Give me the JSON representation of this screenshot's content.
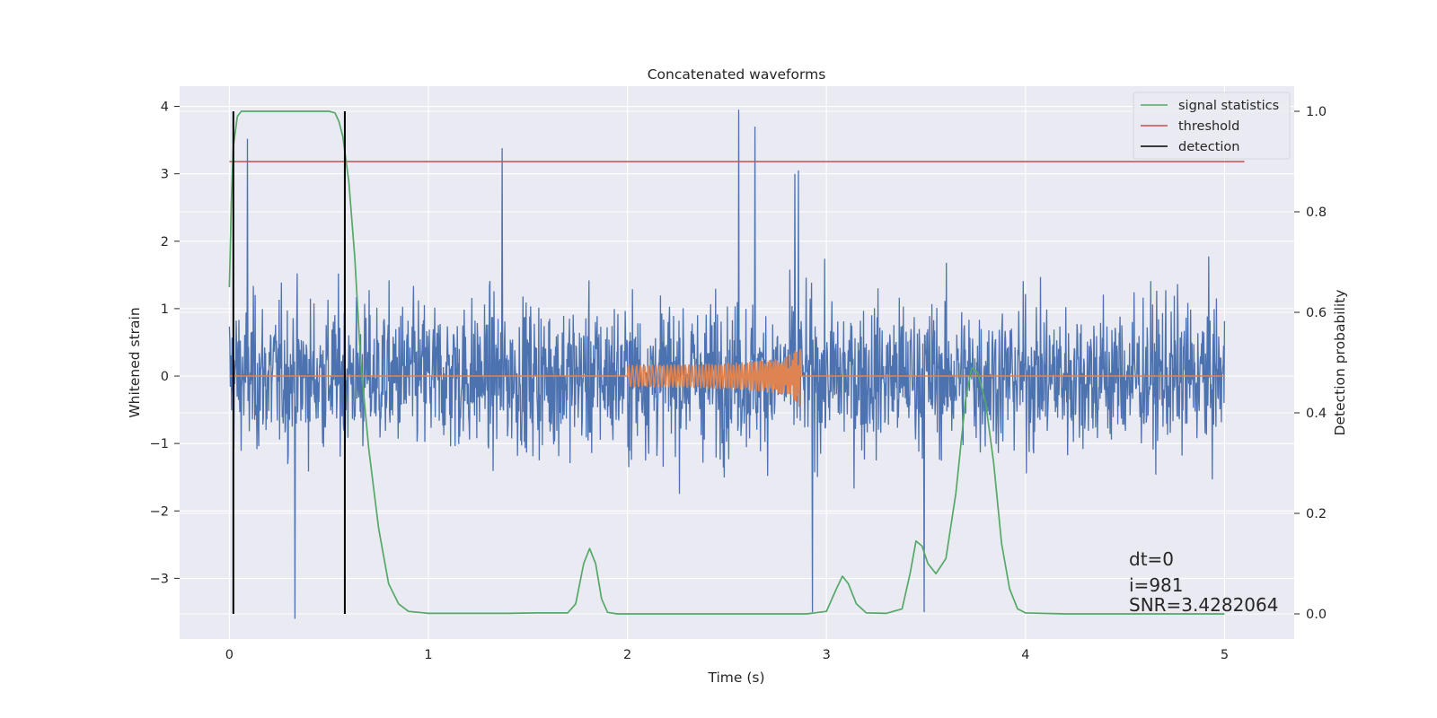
{
  "chart_data": {
    "type": "line",
    "title": "Concatenated waveforms",
    "xlabel": "Time (s)",
    "ylabel": "Whitened strain",
    "y2label": "Detection probability",
    "xlim": [
      -0.25,
      5.35
    ],
    "ylim": [
      -3.9,
      4.3
    ],
    "y2lim": [
      -0.05,
      1.05
    ],
    "xticks": [
      0,
      1,
      2,
      3,
      4,
      5
    ],
    "xtick_labels": [
      "0",
      "1",
      "2",
      "3",
      "4",
      "5"
    ],
    "yticks": [
      -3,
      -2,
      -1,
      0,
      1,
      2,
      3,
      4
    ],
    "ytick_labels": [
      "−3",
      "−2",
      "−1",
      "0",
      "1",
      "2",
      "3",
      "4"
    ],
    "y2ticks": [
      0.0,
      0.2,
      0.4,
      0.6,
      0.8,
      1.0
    ],
    "y2tick_labels": [
      "0.0",
      "0.2",
      "0.4",
      "0.6",
      "0.8",
      "1.0"
    ],
    "grid": true,
    "legend_position": "top-right",
    "colors": {
      "strain": "#4c72b0",
      "injection": "#dd8452",
      "signal_statistics": "#55a868",
      "threshold": "#c44e52",
      "detection": "#000000",
      "axes_bg": "#eaeaf2",
      "grid": "#ffffff"
    },
    "series": [
      {
        "name": "signal statistics",
        "axis": "right",
        "x": [
          0.0,
          0.01,
          0.02,
          0.04,
          0.06,
          0.1,
          0.2,
          0.3,
          0.4,
          0.5,
          0.53,
          0.55,
          0.57,
          0.6,
          0.63,
          0.66,
          0.7,
          0.75,
          0.8,
          0.85,
          0.9,
          1.0,
          1.2,
          1.4,
          1.55,
          1.7,
          1.74,
          1.78,
          1.81,
          1.84,
          1.87,
          1.9,
          1.95,
          2.0,
          2.5,
          2.9,
          3.0,
          3.05,
          3.08,
          3.11,
          3.15,
          3.2,
          3.3,
          3.38,
          3.42,
          3.45,
          3.48,
          3.51,
          3.55,
          3.6,
          3.65,
          3.7,
          3.73,
          3.76,
          3.8,
          3.84,
          3.88,
          3.92,
          3.96,
          4.0,
          4.2,
          4.6,
          5.0
        ],
        "y": [
          0.65,
          0.82,
          0.93,
          0.99,
          1.0,
          1.0,
          1.0,
          1.0,
          1.0,
          1.0,
          0.997,
          0.98,
          0.95,
          0.86,
          0.71,
          0.5,
          0.33,
          0.17,
          0.06,
          0.02,
          0.005,
          0.001,
          0.001,
          0.001,
          0.002,
          0.002,
          0.02,
          0.1,
          0.13,
          0.1,
          0.03,
          0.003,
          0.0,
          0.0,
          0.0,
          0.0,
          0.005,
          0.05,
          0.075,
          0.06,
          0.02,
          0.002,
          0.001,
          0.01,
          0.08,
          0.145,
          0.135,
          0.1,
          0.08,
          0.11,
          0.24,
          0.43,
          0.49,
          0.48,
          0.42,
          0.3,
          0.14,
          0.05,
          0.01,
          0.002,
          0.0,
          0.0,
          0.0
        ]
      },
      {
        "name": "threshold",
        "axis": "right",
        "x": [
          0.0,
          5.1
        ],
        "y": [
          0.9,
          0.9
        ]
      },
      {
        "name": "detection",
        "axis": "right",
        "segments": [
          {
            "x": 0.02,
            "y": [
              0.0,
              1.0
            ]
          },
          {
            "x": 0.58,
            "y": [
              0.0,
              1.0
            ]
          }
        ]
      }
    ],
    "strain": {
      "axis": "left",
      "x_range": [
        0.0,
        5.0
      ],
      "typical_envelope": [
        -2.0,
        2.5
      ],
      "mean": 0.0,
      "peaks": [
        {
          "x": 0.09,
          "y": 3.52
        },
        {
          "x": 0.33,
          "y": -3.6
        },
        {
          "x": 1.37,
          "y": 3.38
        },
        {
          "x": 2.56,
          "y": 3.95
        },
        {
          "x": 2.64,
          "y": 3.7
        },
        {
          "x": 2.84,
          "y": 3.0
        },
        {
          "x": 2.86,
          "y": 3.05
        },
        {
          "x": 2.93,
          "y": -3.5
        },
        {
          "x": 3.49,
          "y": -3.5
        }
      ]
    },
    "injection": {
      "axis": "left",
      "x_start": 2.0,
      "x_end": 2.87,
      "peak_amplitude": 0.58
    },
    "legend": [
      {
        "label": "signal statistics",
        "color": "#55a868"
      },
      {
        "label": "threshold",
        "color": "#c44e52"
      },
      {
        "label": "detection",
        "color": "#000000"
      }
    ],
    "annotations": [
      {
        "label": "dt=0",
        "x": 4.5,
        "y": -2.72
      },
      {
        "label": "i=981",
        "x": 4.5,
        "y": -3.12
      },
      {
        "label": "SNR=3.4282064",
        "x": 4.5,
        "y": -3.42
      }
    ]
  }
}
